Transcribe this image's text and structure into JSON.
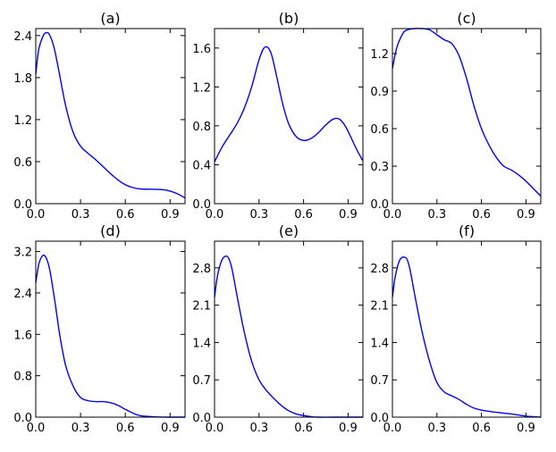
{
  "figure": {
    "curve_color": "#0000ff",
    "frame_color": "#000000",
    "background": "#ffffff"
  },
  "chart_data": [
    {
      "type": "line",
      "title": "(a)",
      "xlabel": "",
      "ylabel": "",
      "xlim": [
        0,
        1
      ],
      "ylim": [
        0,
        2.5
      ],
      "grid": false,
      "xticks": [
        0.0,
        0.3,
        0.6,
        0.9
      ],
      "xtick_labels": [
        "0.0",
        "0.3",
        "0.6",
        "0.9"
      ],
      "yticks": [
        0.0,
        0.6,
        1.2,
        1.8,
        2.4
      ],
      "ytick_labels": [
        "0.0",
        "0.6",
        "1.2",
        "1.8",
        "2.4"
      ],
      "series": [
        {
          "x": [
            0,
            0.02,
            0.05,
            0.07,
            0.09,
            0.12,
            0.15,
            0.2,
            0.25,
            0.3,
            0.35,
            0.4,
            0.45,
            0.5,
            0.55,
            0.6,
            0.65,
            0.7,
            0.8,
            0.85,
            0.9,
            0.95,
            1.0
          ],
          "y": [
            1.85,
            2.2,
            2.4,
            2.44,
            2.42,
            2.25,
            1.95,
            1.4,
            1.02,
            0.82,
            0.72,
            0.63,
            0.53,
            0.43,
            0.34,
            0.27,
            0.23,
            0.21,
            0.205,
            0.2,
            0.18,
            0.14,
            0.08
          ]
        }
      ]
    },
    {
      "type": "line",
      "title": "(b)",
      "xlabel": "",
      "ylabel": "",
      "xlim": [
        0,
        1
      ],
      "ylim": [
        0,
        1.8
      ],
      "grid": false,
      "xticks": [
        0.0,
        0.3,
        0.6,
        0.9
      ],
      "xtick_labels": [
        "0.0",
        "0.3",
        "0.6",
        "0.9"
      ],
      "yticks": [
        0.0,
        0.4,
        0.8,
        1.2,
        1.6
      ],
      "ytick_labels": [
        "0.0",
        "0.4",
        "0.8",
        "1.2",
        "1.6"
      ],
      "series": [
        {
          "x": [
            0,
            0.05,
            0.1,
            0.15,
            0.2,
            0.25,
            0.3,
            0.34,
            0.38,
            0.42,
            0.46,
            0.5,
            0.55,
            0.6,
            0.65,
            0.7,
            0.75,
            0.8,
            0.84,
            0.88,
            0.92,
            0.96,
            1.0
          ],
          "y": [
            0.43,
            0.58,
            0.7,
            0.82,
            0.98,
            1.2,
            1.48,
            1.61,
            1.55,
            1.3,
            1.02,
            0.82,
            0.69,
            0.65,
            0.67,
            0.73,
            0.81,
            0.87,
            0.87,
            0.8,
            0.68,
            0.55,
            0.44
          ]
        }
      ]
    },
    {
      "type": "line",
      "title": "(c)",
      "xlabel": "",
      "ylabel": "",
      "xlim": [
        0,
        1
      ],
      "ylim": [
        0,
        1.4
      ],
      "grid": false,
      "xticks": [
        0.0,
        0.3,
        0.6,
        0.9
      ],
      "xtick_labels": [
        "0.0",
        "0.3",
        "0.6",
        "0.9"
      ],
      "yticks": [
        0.0,
        0.3,
        0.6,
        0.9,
        1.2
      ],
      "ytick_labels": [
        "0.0",
        "0.3",
        "0.6",
        "0.9",
        "1.2"
      ],
      "series": [
        {
          "x": [
            0,
            0.03,
            0.07,
            0.1,
            0.15,
            0.2,
            0.25,
            0.3,
            0.35,
            0.4,
            0.45,
            0.5,
            0.55,
            0.6,
            0.65,
            0.7,
            0.75,
            0.8,
            0.85,
            0.9,
            0.95,
            1.0
          ],
          "y": [
            1.08,
            1.25,
            1.36,
            1.39,
            1.4,
            1.4,
            1.39,
            1.35,
            1.31,
            1.28,
            1.18,
            1.0,
            0.78,
            0.6,
            0.47,
            0.37,
            0.3,
            0.27,
            0.23,
            0.18,
            0.12,
            0.06
          ]
        }
      ]
    },
    {
      "type": "line",
      "title": "(d)",
      "xlabel": "",
      "ylabel": "",
      "xlim": [
        0,
        1
      ],
      "ylim": [
        0,
        3.4
      ],
      "grid": false,
      "xticks": [
        0.0,
        0.3,
        0.6,
        0.9
      ],
      "xtick_labels": [
        "0.0",
        "0.3",
        "0.6",
        "0.9"
      ],
      "yticks": [
        0.0,
        0.8,
        1.6,
        2.4,
        3.2
      ],
      "ytick_labels": [
        "0.0",
        "0.8",
        "1.6",
        "2.4",
        "3.2"
      ],
      "series": [
        {
          "x": [
            0,
            0.02,
            0.04,
            0.06,
            0.08,
            0.1,
            0.13,
            0.16,
            0.2,
            0.25,
            0.3,
            0.35,
            0.4,
            0.45,
            0.5,
            0.55,
            0.6,
            0.65,
            0.7,
            0.8,
            0.9,
            1.0
          ],
          "y": [
            2.6,
            2.95,
            3.1,
            3.12,
            3.0,
            2.75,
            2.2,
            1.6,
            1.0,
            0.6,
            0.38,
            0.32,
            0.3,
            0.3,
            0.28,
            0.23,
            0.15,
            0.08,
            0.03,
            0.005,
            0.0,
            0.0
          ]
        }
      ]
    },
    {
      "type": "line",
      "title": "(e)",
      "xlabel": "",
      "ylabel": "",
      "xlim": [
        0,
        1
      ],
      "ylim": [
        0,
        3.3
      ],
      "grid": false,
      "xticks": [
        0.0,
        0.3,
        0.6,
        0.9
      ],
      "xtick_labels": [
        "0.0",
        "0.3",
        "0.6",
        "0.9"
      ],
      "yticks": [
        0.0,
        0.7,
        1.4,
        2.1,
        2.8
      ],
      "ytick_labels": [
        "0.0",
        "0.7",
        "1.4",
        "2.1",
        "2.8"
      ],
      "series": [
        {
          "x": [
            0,
            0.02,
            0.05,
            0.08,
            0.1,
            0.12,
            0.15,
            0.2,
            0.25,
            0.3,
            0.35,
            0.4,
            0.45,
            0.5,
            0.55,
            0.6,
            0.65,
            0.7,
            0.8,
            0.9,
            1.0
          ],
          "y": [
            2.25,
            2.65,
            2.95,
            3.02,
            2.95,
            2.75,
            2.3,
            1.6,
            1.05,
            0.7,
            0.5,
            0.35,
            0.22,
            0.12,
            0.06,
            0.03,
            0.01,
            0.0,
            0.0,
            0.0,
            0.0
          ]
        }
      ]
    },
    {
      "type": "line",
      "title": "(f)",
      "xlabel": "",
      "ylabel": "",
      "xlim": [
        0,
        1
      ],
      "ylim": [
        0,
        3.3
      ],
      "grid": false,
      "xticks": [
        0.0,
        0.3,
        0.6,
        0.9
      ],
      "xtick_labels": [
        "0.0",
        "0.3",
        "0.6",
        "0.9"
      ],
      "yticks": [
        0.0,
        0.7,
        1.4,
        2.1,
        2.8
      ],
      "ytick_labels": [
        "0.0",
        "0.7",
        "1.4",
        "2.1",
        "2.8"
      ],
      "series": [
        {
          "x": [
            0,
            0.02,
            0.05,
            0.08,
            0.1,
            0.12,
            0.15,
            0.2,
            0.25,
            0.3,
            0.35,
            0.4,
            0.45,
            0.5,
            0.55,
            0.6,
            0.65,
            0.7,
            0.8,
            0.9,
            1.0
          ],
          "y": [
            2.25,
            2.65,
            2.95,
            3.0,
            2.95,
            2.75,
            2.3,
            1.6,
            1.05,
            0.65,
            0.47,
            0.4,
            0.33,
            0.24,
            0.17,
            0.13,
            0.11,
            0.09,
            0.06,
            0.02,
            0.0
          ]
        }
      ]
    }
  ]
}
